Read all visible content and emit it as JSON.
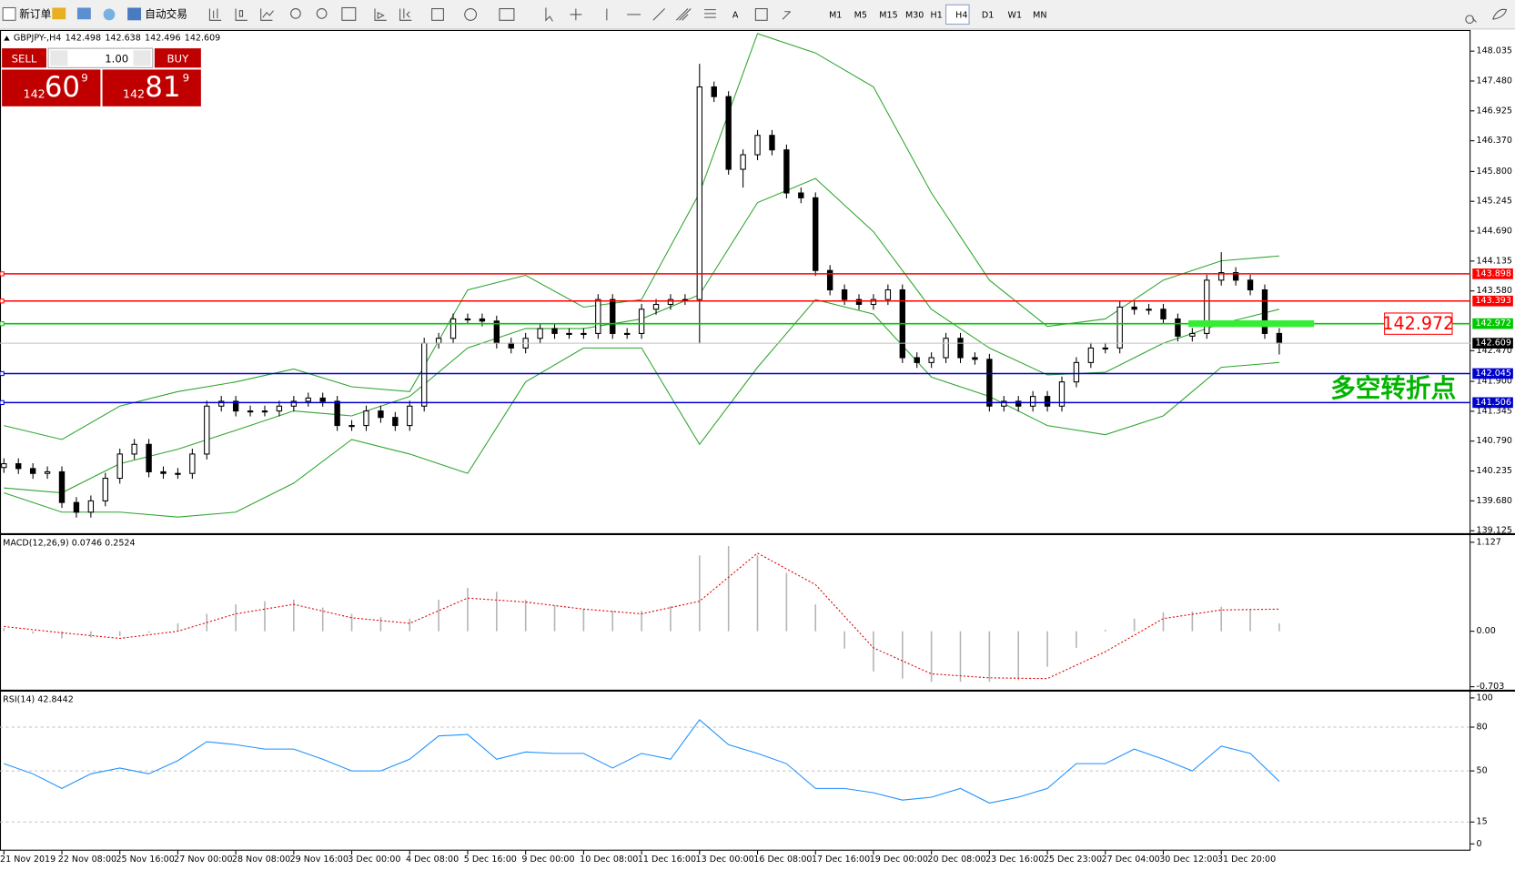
{
  "toolbar": {
    "new_order": "新订单",
    "auto_trading": "自动交易",
    "timeframes": [
      "M1",
      "M5",
      "M15",
      "M30",
      "H1",
      "H4",
      "D1",
      "W1",
      "MN"
    ]
  },
  "trade_panel": {
    "sell": "SELL",
    "buy": "BUY",
    "lot": "1.00",
    "sell_price": {
      "prefix": "142",
      "big": "60",
      "sup": "9"
    },
    "buy_price": {
      "prefix": "142",
      "big": "81",
      "sup": "9"
    }
  },
  "chart_data": [
    {
      "type": "candlestick",
      "title": "GBPJPY-,H4",
      "ohlc": [
        142.498,
        142.638,
        142.496,
        142.609
      ],
      "xlim": [
        -0.27,
        101.2
      ],
      "ylim": [
        139.09,
        148.41
      ],
      "yticks": [
        148.035,
        {
          "value": 147.48,
          "label": "147.480"
        },
        146.925,
        {
          "value": 146.37,
          "label": "146.370"
        },
        {
          "value": 145.8,
          "label": "145.800"
        },
        145.245,
        {
          "value": 144.69,
          "label": "144.690"
        },
        144.135,
        {
          "value": 143.58,
          "label": "143.580"
        },
        {
          "value": 142.47,
          "label": "142.470"
        },
        {
          "value": 141.9,
          "label": "141.900"
        },
        141.345,
        {
          "value": 140.79,
          "label": "140.790"
        },
        140.235,
        {
          "value": 139.68,
          "label": "139.680"
        },
        139.125
      ],
      "open": [
        140.3,
        140.37,
        140.28,
        140.19,
        140.22,
        139.65,
        139.47,
        139.68,
        140.1,
        140.55,
        140.73,
        140.22,
        140.19,
        140.19,
        140.55,
        141.44,
        141.53,
        141.35,
        141.35,
        141.35,
        141.44,
        141.53,
        141.59,
        141.53,
        141.08,
        141.08,
        141.35,
        141.23,
        141.08,
        141.44,
        142.61,
        142.7,
        143.06,
        143.06,
        143.02,
        142.61,
        142.52,
        142.7,
        142.88,
        142.79,
        142.79,
        142.79,
        143.42,
        142.79,
        142.79,
        143.24,
        143.33,
        143.42,
        143.42,
        147.37,
        147.19,
        145.84,
        146.11,
        146.47,
        146.2,
        145.4,
        145.31,
        143.96,
        143.6,
        143.42,
        143.33,
        143.42,
        143.6,
        142.34,
        142.25,
        142.34,
        142.7,
        142.34,
        142.31,
        141.44,
        141.53,
        141.44,
        141.62,
        141.44,
        141.89,
        142.25,
        142.52,
        142.52,
        143.28,
        143.24,
        143.24,
        143.06,
        142.74,
        142.79,
        143.78,
        143.92,
        143.78,
        143.6,
        142.79
      ],
      "high": [
        140.47,
        140.47,
        140.38,
        140.32,
        140.32,
        139.75,
        139.78,
        140.2,
        140.65,
        140.83,
        140.83,
        140.32,
        140.29,
        140.65,
        141.54,
        141.63,
        141.63,
        141.45,
        141.45,
        141.54,
        141.63,
        141.69,
        141.69,
        141.63,
        141.18,
        141.45,
        141.45,
        141.33,
        141.54,
        142.71,
        142.8,
        143.16,
        143.16,
        143.16,
        143.12,
        142.71,
        142.8,
        142.98,
        142.98,
        142.89,
        142.89,
        143.52,
        143.52,
        142.89,
        143.34,
        143.43,
        143.52,
        143.52,
        147.8,
        147.47,
        147.29,
        146.21,
        146.57,
        146.57,
        146.3,
        145.5,
        145.41,
        144.06,
        143.7,
        143.52,
        143.52,
        143.7,
        143.7,
        142.44,
        142.44,
        142.8,
        142.8,
        142.44,
        142.41,
        141.63,
        141.63,
        141.72,
        141.72,
        141.99,
        142.35,
        142.62,
        142.62,
        143.38,
        143.38,
        143.34,
        143.34,
        143.16,
        142.89,
        143.88,
        144.3,
        144.02,
        143.88,
        143.7,
        142.89
      ],
      "low": [
        140.2,
        140.18,
        140.09,
        140.09,
        139.55,
        139.37,
        139.37,
        139.58,
        140.0,
        140.45,
        140.12,
        140.09,
        140.09,
        140.09,
        140.45,
        141.34,
        141.25,
        141.25,
        141.25,
        141.25,
        141.34,
        141.43,
        141.43,
        140.98,
        140.98,
        140.98,
        141.13,
        140.98,
        140.98,
        141.34,
        142.51,
        142.6,
        142.96,
        142.92,
        142.51,
        142.42,
        142.42,
        142.6,
        142.69,
        142.69,
        142.69,
        142.69,
        142.69,
        142.69,
        142.69,
        143.14,
        143.23,
        143.32,
        142.6,
        147.09,
        145.74,
        145.5,
        146.01,
        146.1,
        145.3,
        145.21,
        143.86,
        143.5,
        143.32,
        143.23,
        143.23,
        143.32,
        142.24,
        142.15,
        142.15,
        142.24,
        142.24,
        142.21,
        141.34,
        141.34,
        141.34,
        141.34,
        141.34,
        141.34,
        141.79,
        142.15,
        142.42,
        142.42,
        143.14,
        143.14,
        142.96,
        142.64,
        142.64,
        142.69,
        143.68,
        143.68,
        143.5,
        142.69,
        142.4
      ],
      "close": [
        140.37,
        140.28,
        140.19,
        140.22,
        139.65,
        139.47,
        139.68,
        140.1,
        140.55,
        140.73,
        140.22,
        140.19,
        140.19,
        140.55,
        141.44,
        141.53,
        141.35,
        141.35,
        141.35,
        141.44,
        141.53,
        141.59,
        141.53,
        141.08,
        141.08,
        141.35,
        141.23,
        141.08,
        141.44,
        142.61,
        142.7,
        143.06,
        143.06,
        143.02,
        142.61,
        142.52,
        142.7,
        142.88,
        142.79,
        142.79,
        142.79,
        143.42,
        142.79,
        142.79,
        143.24,
        143.33,
        143.42,
        143.42,
        147.37,
        147.19,
        145.84,
        146.11,
        146.47,
        146.2,
        145.4,
        145.31,
        143.96,
        143.6,
        143.42,
        143.33,
        143.42,
        143.6,
        142.34,
        142.25,
        142.34,
        142.7,
        142.34,
        142.31,
        141.44,
        141.53,
        141.44,
        141.62,
        141.44,
        141.89,
        142.25,
        142.52,
        142.52,
        143.28,
        143.24,
        143.24,
        143.06,
        142.74,
        142.79,
        143.78,
        143.92,
        143.78,
        143.6,
        142.79,
        142.61
      ],
      "bands": {
        "color": "#2fa52f",
        "x": [
          0,
          4,
          8,
          12,
          16,
          20,
          24,
          28,
          32,
          36,
          40,
          44,
          48,
          52,
          56,
          60,
          64,
          68,
          72,
          76,
          80,
          84,
          88
        ],
        "upper": [
          141.08,
          140.82,
          141.44,
          141.71,
          141.89,
          142.13,
          141.8,
          141.71,
          143.6,
          143.87,
          143.28,
          143.42,
          145.4,
          148.36,
          148.0,
          147.37,
          145.4,
          143.78,
          142.92,
          143.06,
          143.78,
          144.14,
          144.23
        ],
        "middle": [
          139.92,
          139.83,
          140.37,
          140.64,
          140.99,
          141.35,
          141.26,
          141.62,
          142.52,
          142.88,
          142.88,
          143.06,
          143.51,
          145.22,
          145.67,
          144.68,
          143.24,
          142.52,
          142.02,
          142.07,
          142.61,
          142.97,
          143.24
        ],
        "lower": [
          139.83,
          139.47,
          139.47,
          139.38,
          139.47,
          140.01,
          140.82,
          140.55,
          140.19,
          141.89,
          142.52,
          142.52,
          140.73,
          142.16,
          143.42,
          143.15,
          141.98,
          141.62,
          141.08,
          140.91,
          141.26,
          142.16,
          142.25
        ]
      },
      "levels": [
        {
          "value": 143.898,
          "color": "#ff0000"
        },
        {
          "value": 143.393,
          "color": "#ff0000"
        },
        {
          "value": 142.972,
          "color": "#00c800"
        },
        {
          "value": 142.045,
          "color": "#0000cd"
        },
        {
          "value": 141.506,
          "color": "#0000cd"
        }
      ],
      "annotation": {
        "text": "多空转折点",
        "color": "#00b400",
        "marker_color": "#33ee33",
        "box_color": "#ff0000"
      }
    },
    {
      "type": "macd",
      "title": "MACD(12,26,9) 0.0746 0.2524",
      "xlim": [
        -0.27,
        101.2
      ],
      "ylim": [
        -0.71,
        1.2
      ],
      "yticks": [
        1.127,
        {
          "value": 0,
          "label": "0.00"
        },
        -0.703
      ],
      "histogram": {
        "color": "#b4b4b4",
        "x": [
          0,
          2,
          4,
          6,
          8,
          10,
          12,
          14,
          16,
          18,
          20,
          22,
          24,
          26,
          28,
          30,
          32,
          34,
          36,
          38,
          40,
          42,
          44,
          46,
          48,
          50,
          52,
          54,
          56,
          58,
          60,
          62,
          64,
          66,
          68,
          70,
          72,
          74,
          76,
          78,
          80,
          82,
          84,
          86,
          88
        ],
        "values": [
          0.04,
          -0.03,
          -0.09,
          -0.08,
          -0.06,
          -0.02,
          0.1,
          0.22,
          0.34,
          0.38,
          0.4,
          0.3,
          0.22,
          0.18,
          0.16,
          0.4,
          0.55,
          0.5,
          0.4,
          0.33,
          0.28,
          0.26,
          0.26,
          0.32,
          0.96,
          1.08,
          0.96,
          0.74,
          0.34,
          -0.22,
          -0.51,
          -0.6,
          -0.64,
          -0.64,
          -0.64,
          -0.62,
          -0.45,
          -0.21,
          0.02,
          0.16,
          0.24,
          0.25,
          0.31,
          0.28,
          0.1
        ]
      },
      "signal": {
        "color": "#e00000",
        "x": [
          0,
          4,
          8,
          12,
          16,
          20,
          24,
          28,
          32,
          36,
          40,
          44,
          48,
          52,
          56,
          60,
          64,
          68,
          72,
          76,
          80,
          84,
          88
        ],
        "values": [
          0.06,
          -0.02,
          -0.09,
          0.0,
          0.22,
          0.34,
          0.17,
          0.1,
          0.42,
          0.37,
          0.28,
          0.22,
          0.38,
          0.99,
          0.59,
          -0.21,
          -0.54,
          -0.59,
          -0.6,
          -0.26,
          0.16,
          0.27,
          0.28
        ]
      }
    },
    {
      "type": "line",
      "title": "RSI(14) 42.8442",
      "color": "#1e90ff",
      "xlim": [
        -0.27,
        101.2
      ],
      "ylim": [
        0,
        100
      ],
      "yticks": [
        100,
        80,
        50,
        15,
        0
      ],
      "x": [
        0,
        2,
        4,
        6,
        8,
        10,
        12,
        14,
        16,
        18,
        20,
        22,
        24,
        26,
        28,
        30,
        32,
        34,
        36,
        38,
        40,
        42,
        44,
        46,
        48,
        50,
        52,
        54,
        56,
        58,
        60,
        62,
        64,
        66,
        68,
        70,
        72,
        74,
        76,
        78,
        80,
        82,
        84,
        86,
        88
      ],
      "values": [
        55,
        48,
        38,
        48,
        52,
        48,
        57,
        70,
        68,
        65,
        65,
        58,
        50,
        50,
        58,
        74,
        75,
        58,
        63,
        62,
        62,
        52,
        62,
        58,
        85,
        68,
        62,
        55,
        38,
        38,
        35,
        30,
        32,
        38,
        28,
        32,
        38,
        55,
        55,
        65,
        58,
        50,
        67,
        62,
        42.84
      ],
      "xticks": [
        {
          "value": 0,
          "label": "21 Nov 2019"
        },
        {
          "value": 4,
          "label": "22 Nov 08:00"
        },
        {
          "value": 8,
          "label": "25 Nov 16:00"
        },
        {
          "value": 12,
          "label": "27 Nov 00:00"
        },
        {
          "value": 16,
          "label": "28 Nov 08:00"
        },
        {
          "value": 20,
          "label": "29 Nov 16:00"
        },
        {
          "value": 24,
          "label": "3 Dec 00:00"
        },
        {
          "value": 28,
          "label": "4 Dec 08:00"
        },
        {
          "value": 32,
          "label": "5 Dec 16:00"
        },
        {
          "value": 36,
          "label": "9 Dec 00:00"
        },
        {
          "value": 40,
          "label": "10 Dec 08:00"
        },
        {
          "value": 44,
          "label": "11 Dec 16:00"
        },
        {
          "value": 48,
          "label": "13 Dec 00:00"
        },
        {
          "value": 52,
          "label": "16 Dec 08:00"
        },
        {
          "value": 56,
          "label": "17 Dec 16:00"
        },
        {
          "value": 60,
          "label": "19 Dec 00:00"
        },
        {
          "value": 64,
          "label": "20 Dec 08:00"
        },
        {
          "value": 68,
          "label": "23 Dec 16:00"
        },
        {
          "value": 72,
          "label": "25 Dec 23:00"
        },
        {
          "value": 76,
          "label": "27 Dec 04:00"
        },
        {
          "value": 80,
          "label": "30 Dec 12:00"
        },
        {
          "value": 84,
          "label": "31 Dec 20:00"
        }
      ]
    }
  ]
}
